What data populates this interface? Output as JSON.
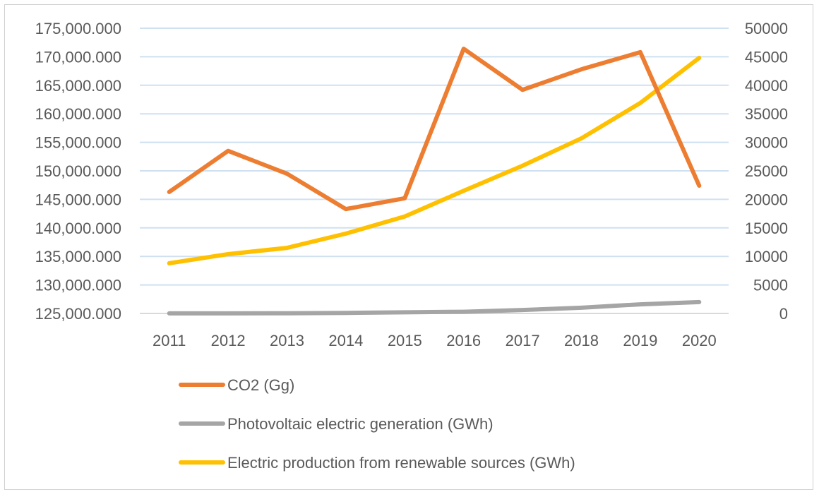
{
  "chart_data": {
    "type": "line",
    "title": "",
    "categories": [
      "2011",
      "2012",
      "2013",
      "2014",
      "2015",
      "2016",
      "2017",
      "2018",
      "2019",
      "2020"
    ],
    "y_left": {
      "range": [
        125000,
        175000
      ],
      "step": 5000,
      "tick_labels": [
        "125,000.000",
        "130,000.000",
        "135,000.000",
        "140,000.000",
        "145,000.000",
        "150,000.000",
        "155,000.000",
        "160,000.000",
        "165,000.000",
        "170,000.000",
        "175,000.000"
      ]
    },
    "y_right": {
      "range": [
        0,
        50000
      ],
      "step": 5000,
      "tick_labels": [
        "0",
        "5000",
        "10000",
        "15000",
        "20000",
        "25000",
        "30000",
        "35000",
        "40000",
        "45000",
        "50000"
      ]
    },
    "grid": true,
    "legend_position": "bottom",
    "series": [
      {
        "name": "CO2 (Gg)",
        "axis": "left",
        "color": "#ED7D31",
        "values": [
          146300,
          153500,
          149500,
          143300,
          145200,
          171400,
          164200,
          167800,
          170800,
          147400
        ]
      },
      {
        "name": "Photovoltaic electric generation (GWh)",
        "axis": "right",
        "color": "#A5A5A5",
        "values": [
          10,
          20,
          30,
          100,
          200,
          300,
          600,
          1000,
          1600,
          2000
        ]
      },
      {
        "name": "Electric production from renewable sources (GWh)",
        "axis": "right",
        "color": "#FFC000",
        "values": [
          8800,
          10400,
          11500,
          14000,
          17000,
          21500,
          25900,
          30700,
          36900,
          44800
        ]
      }
    ]
  }
}
